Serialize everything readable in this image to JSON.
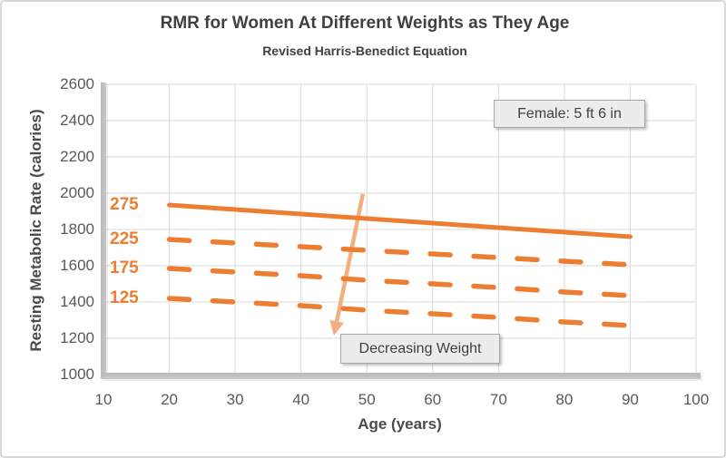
{
  "colors": {
    "series_orange": "#ED7D31",
    "arrow": "#F3AF7F",
    "gridline": "#D9D9D9",
    "axis_bar": "#BFBFBF",
    "tick_text": "#595959",
    "title_text": "#404040",
    "annotation_bg": "#ECECEC",
    "annotation_border": "#A6A6A6"
  },
  "chart_data": {
    "type": "line",
    "title": "RMR for Women At Different Weights as They Age",
    "subtitle": "Revised Harris-Benedict Equation",
    "xlabel": "Age (years)",
    "ylabel": "Resting Metabolic Rate (calories)",
    "xlim": [
      10,
      100
    ],
    "ylim": [
      1000,
      2600
    ],
    "x_ticks": [
      10,
      20,
      30,
      40,
      50,
      60,
      70,
      80,
      90,
      100
    ],
    "y_ticks": [
      1000,
      1200,
      1400,
      1600,
      1800,
      2000,
      2200,
      2400,
      2600
    ],
    "grid": true,
    "legend_position": "inline-labels-left-of-lines",
    "x": [
      20,
      30,
      40,
      50,
      60,
      70,
      80,
      90
    ],
    "series": [
      {
        "name": "275",
        "style": "solid",
        "values": [
          1935,
          1910,
          1885,
          1860,
          1835,
          1810,
          1785,
          1760
        ]
      },
      {
        "name": "225",
        "style": "dashed",
        "values": [
          1745,
          1725,
          1705,
          1685,
          1665,
          1645,
          1625,
          1605
        ]
      },
      {
        "name": "175",
        "style": "dashed",
        "values": [
          1585,
          1565,
          1545,
          1520,
          1500,
          1480,
          1455,
          1435
        ]
      },
      {
        "name": "125",
        "style": "dashed",
        "values": [
          1420,
          1400,
          1380,
          1355,
          1335,
          1315,
          1290,
          1270
        ]
      }
    ],
    "annotations": {
      "height_note": {
        "text": "Female: 5 ft 6 in"
      },
      "weight_note": {
        "text": "Decreasing Weight"
      },
      "arrow": {
        "from_age": 49.4,
        "from_rmr": 1995,
        "to_age": 45.0,
        "to_rmr": 1215
      }
    }
  }
}
